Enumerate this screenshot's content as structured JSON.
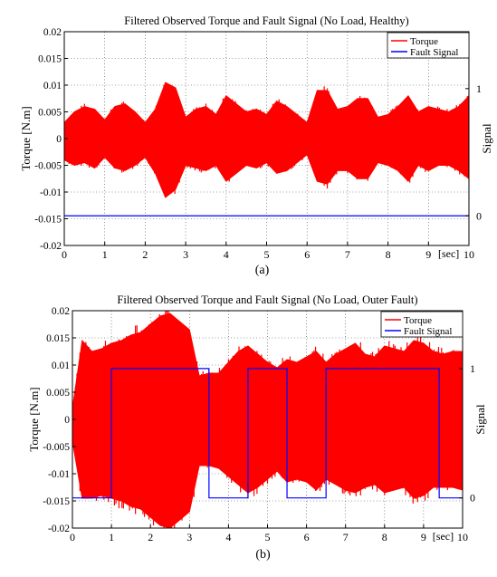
{
  "chart_data": [
    {
      "type": "line",
      "title": "Filtered Observed Torque and Fault Signal (No Load,  Healthy)",
      "ylabel": "Torque [N.m]",
      "ylabel_right": "Signal",
      "x_unit_label": "[sec]",
      "panel_label": "(a)",
      "xlim": [
        0,
        10
      ],
      "ylim": [
        -0.02,
        0.02
      ],
      "y_ticks": [
        "0.02",
        "0.015",
        "0.01",
        "0.005",
        "0",
        "-0.005",
        "-0.01",
        "-0.015",
        "-0.02"
      ],
      "y_tick_values": [
        0.02,
        0.015,
        0.01,
        0.005,
        0,
        -0.005,
        -0.01,
        -0.015,
        -0.02
      ],
      "x_ticks": [
        "0",
        "1",
        "2",
        "3",
        "4",
        "5",
        "6",
        "7",
        "8",
        "9",
        "10"
      ],
      "x_tick_values": [
        0,
        1,
        2,
        3,
        4,
        5,
        6,
        7,
        8,
        9,
        10
      ],
      "right_ticks": [
        "1",
        "0"
      ],
      "right_tick_values": [
        1,
        0
      ],
      "grid": true,
      "legend_position": "top-right",
      "series": [
        {
          "name": "Torque",
          "color": "#ff0000",
          "kind": "oscillation-envelope",
          "x": [
            0,
            0.25,
            0.5,
            0.75,
            1.0,
            1.25,
            1.5,
            1.75,
            2.0,
            2.25,
            2.5,
            2.75,
            3.0,
            3.25,
            3.5,
            3.75,
            4.0,
            4.25,
            4.5,
            4.75,
            5.0,
            5.25,
            5.5,
            5.75,
            6.0,
            6.25,
            6.5,
            6.75,
            7.0,
            7.25,
            7.5,
            7.75,
            8.0,
            8.25,
            8.5,
            8.75,
            9.0,
            9.25,
            9.5,
            9.75,
            10.0
          ],
          "upper": [
            0.003,
            0.005,
            0.006,
            0.0055,
            0.0035,
            0.006,
            0.0065,
            0.005,
            0.003,
            0.0055,
            0.0105,
            0.0095,
            0.004,
            0.0055,
            0.006,
            0.0045,
            0.008,
            0.0065,
            0.005,
            0.0055,
            0.0045,
            0.007,
            0.006,
            0.0045,
            0.003,
            0.009,
            0.009,
            0.0055,
            0.006,
            0.0075,
            0.0075,
            0.004,
            0.0045,
            0.006,
            0.008,
            0.005,
            0.006,
            0.0055,
            0.005,
            0.006,
            0.008
          ],
          "lower": [
            -0.004,
            -0.005,
            -0.0045,
            -0.0055,
            -0.0035,
            -0.0055,
            -0.006,
            -0.005,
            -0.0035,
            -0.0065,
            -0.011,
            -0.0095,
            -0.005,
            -0.0055,
            -0.006,
            -0.005,
            -0.008,
            -0.0065,
            -0.005,
            -0.0055,
            -0.0045,
            -0.0065,
            -0.006,
            -0.0045,
            -0.003,
            -0.008,
            -0.0085,
            -0.006,
            -0.006,
            -0.0075,
            -0.0075,
            -0.0045,
            -0.005,
            -0.006,
            -0.008,
            -0.005,
            -0.006,
            -0.005,
            -0.005,
            -0.006,
            -0.0075
          ]
        },
        {
          "name": "Fault Signal",
          "color": "#0000ff",
          "kind": "step",
          "signal_axis": {
            "value_0": -0.01445,
            "value_1": 0.00935
          },
          "x": [
            0,
            10
          ],
          "y": [
            0,
            0
          ]
        }
      ]
    },
    {
      "type": "line",
      "title": "Filtered Observed Torque and Fault Signal (No Load, Outer Fault)",
      "ylabel": "Torque [N.m]",
      "ylabel_right": "Signal",
      "x_unit_label": "[sec]",
      "panel_label": "(b)",
      "xlim": [
        0,
        10
      ],
      "ylim": [
        -0.02,
        0.02
      ],
      "y_ticks": [
        "0.02",
        "0.015",
        "0.01",
        "0.005",
        "0",
        "-0.005",
        "-0.01",
        "-0.015",
        "-0.02"
      ],
      "y_tick_values": [
        0.02,
        0.015,
        0.01,
        0.005,
        0,
        -0.005,
        -0.01,
        -0.015,
        -0.02
      ],
      "x_ticks": [
        "0",
        "1",
        "2",
        "3",
        "4",
        "5",
        "6",
        "7",
        "8",
        "9",
        "10"
      ],
      "x_tick_values": [
        0,
        1,
        2,
        3,
        4,
        5,
        6,
        7,
        8,
        9,
        10
      ],
      "right_ticks": [
        "1",
        "0"
      ],
      "right_tick_values": [
        1,
        0
      ],
      "grid": true,
      "legend_position": "top-right",
      "series": [
        {
          "name": "Torque",
          "color": "#ff0000",
          "kind": "oscillation-envelope",
          "x": [
            0,
            0.25,
            0.5,
            0.75,
            1.0,
            1.25,
            1.5,
            1.75,
            2.0,
            2.25,
            2.5,
            2.75,
            3.0,
            3.25,
            3.5,
            3.75,
            4.0,
            4.25,
            4.5,
            4.75,
            5.0,
            5.25,
            5.5,
            5.75,
            6.0,
            6.25,
            6.5,
            6.75,
            7.0,
            7.25,
            7.5,
            7.75,
            8.0,
            8.25,
            8.5,
            8.75,
            9.0,
            9.25,
            9.5,
            9.75,
            10.0
          ],
          "upper": [
            0.002,
            0.0145,
            0.0125,
            0.013,
            0.014,
            0.0145,
            0.0155,
            0.016,
            0.0175,
            0.019,
            0.0195,
            0.018,
            0.0165,
            0.008,
            0.0085,
            0.0085,
            0.0105,
            0.0125,
            0.0135,
            0.012,
            0.0105,
            0.0095,
            0.011,
            0.0105,
            0.0115,
            0.0125,
            0.0105,
            0.012,
            0.013,
            0.014,
            0.012,
            0.0115,
            0.0135,
            0.013,
            0.0125,
            0.0145,
            0.014,
            0.0125,
            0.012,
            0.0125,
            0.0125
          ],
          "lower": [
            -0.004,
            -0.0145,
            -0.0145,
            -0.014,
            -0.0145,
            -0.015,
            -0.016,
            -0.0165,
            -0.018,
            -0.0195,
            -0.02,
            -0.0185,
            -0.017,
            -0.0085,
            -0.0085,
            -0.009,
            -0.0105,
            -0.012,
            -0.0135,
            -0.0125,
            -0.011,
            -0.0095,
            -0.0115,
            -0.011,
            -0.0115,
            -0.013,
            -0.011,
            -0.012,
            -0.013,
            -0.0135,
            -0.0125,
            -0.012,
            -0.0135,
            -0.013,
            -0.0125,
            -0.0145,
            -0.014,
            -0.0125,
            -0.0125,
            -0.0125,
            -0.013
          ]
        },
        {
          "name": "Fault Signal",
          "color": "#0000ff",
          "kind": "step",
          "signal_axis": {
            "value_0": -0.01445,
            "value_1": 0.00935
          },
          "x": [
            0,
            1.0,
            1.0,
            3.5,
            3.5,
            4.5,
            4.5,
            5.5,
            5.5,
            6.5,
            6.5,
            9.4,
            9.4,
            10
          ],
          "y": [
            0,
            0,
            1,
            1,
            0,
            0,
            1,
            1,
            0,
            0,
            1,
            1,
            0,
            0
          ]
        }
      ]
    }
  ]
}
